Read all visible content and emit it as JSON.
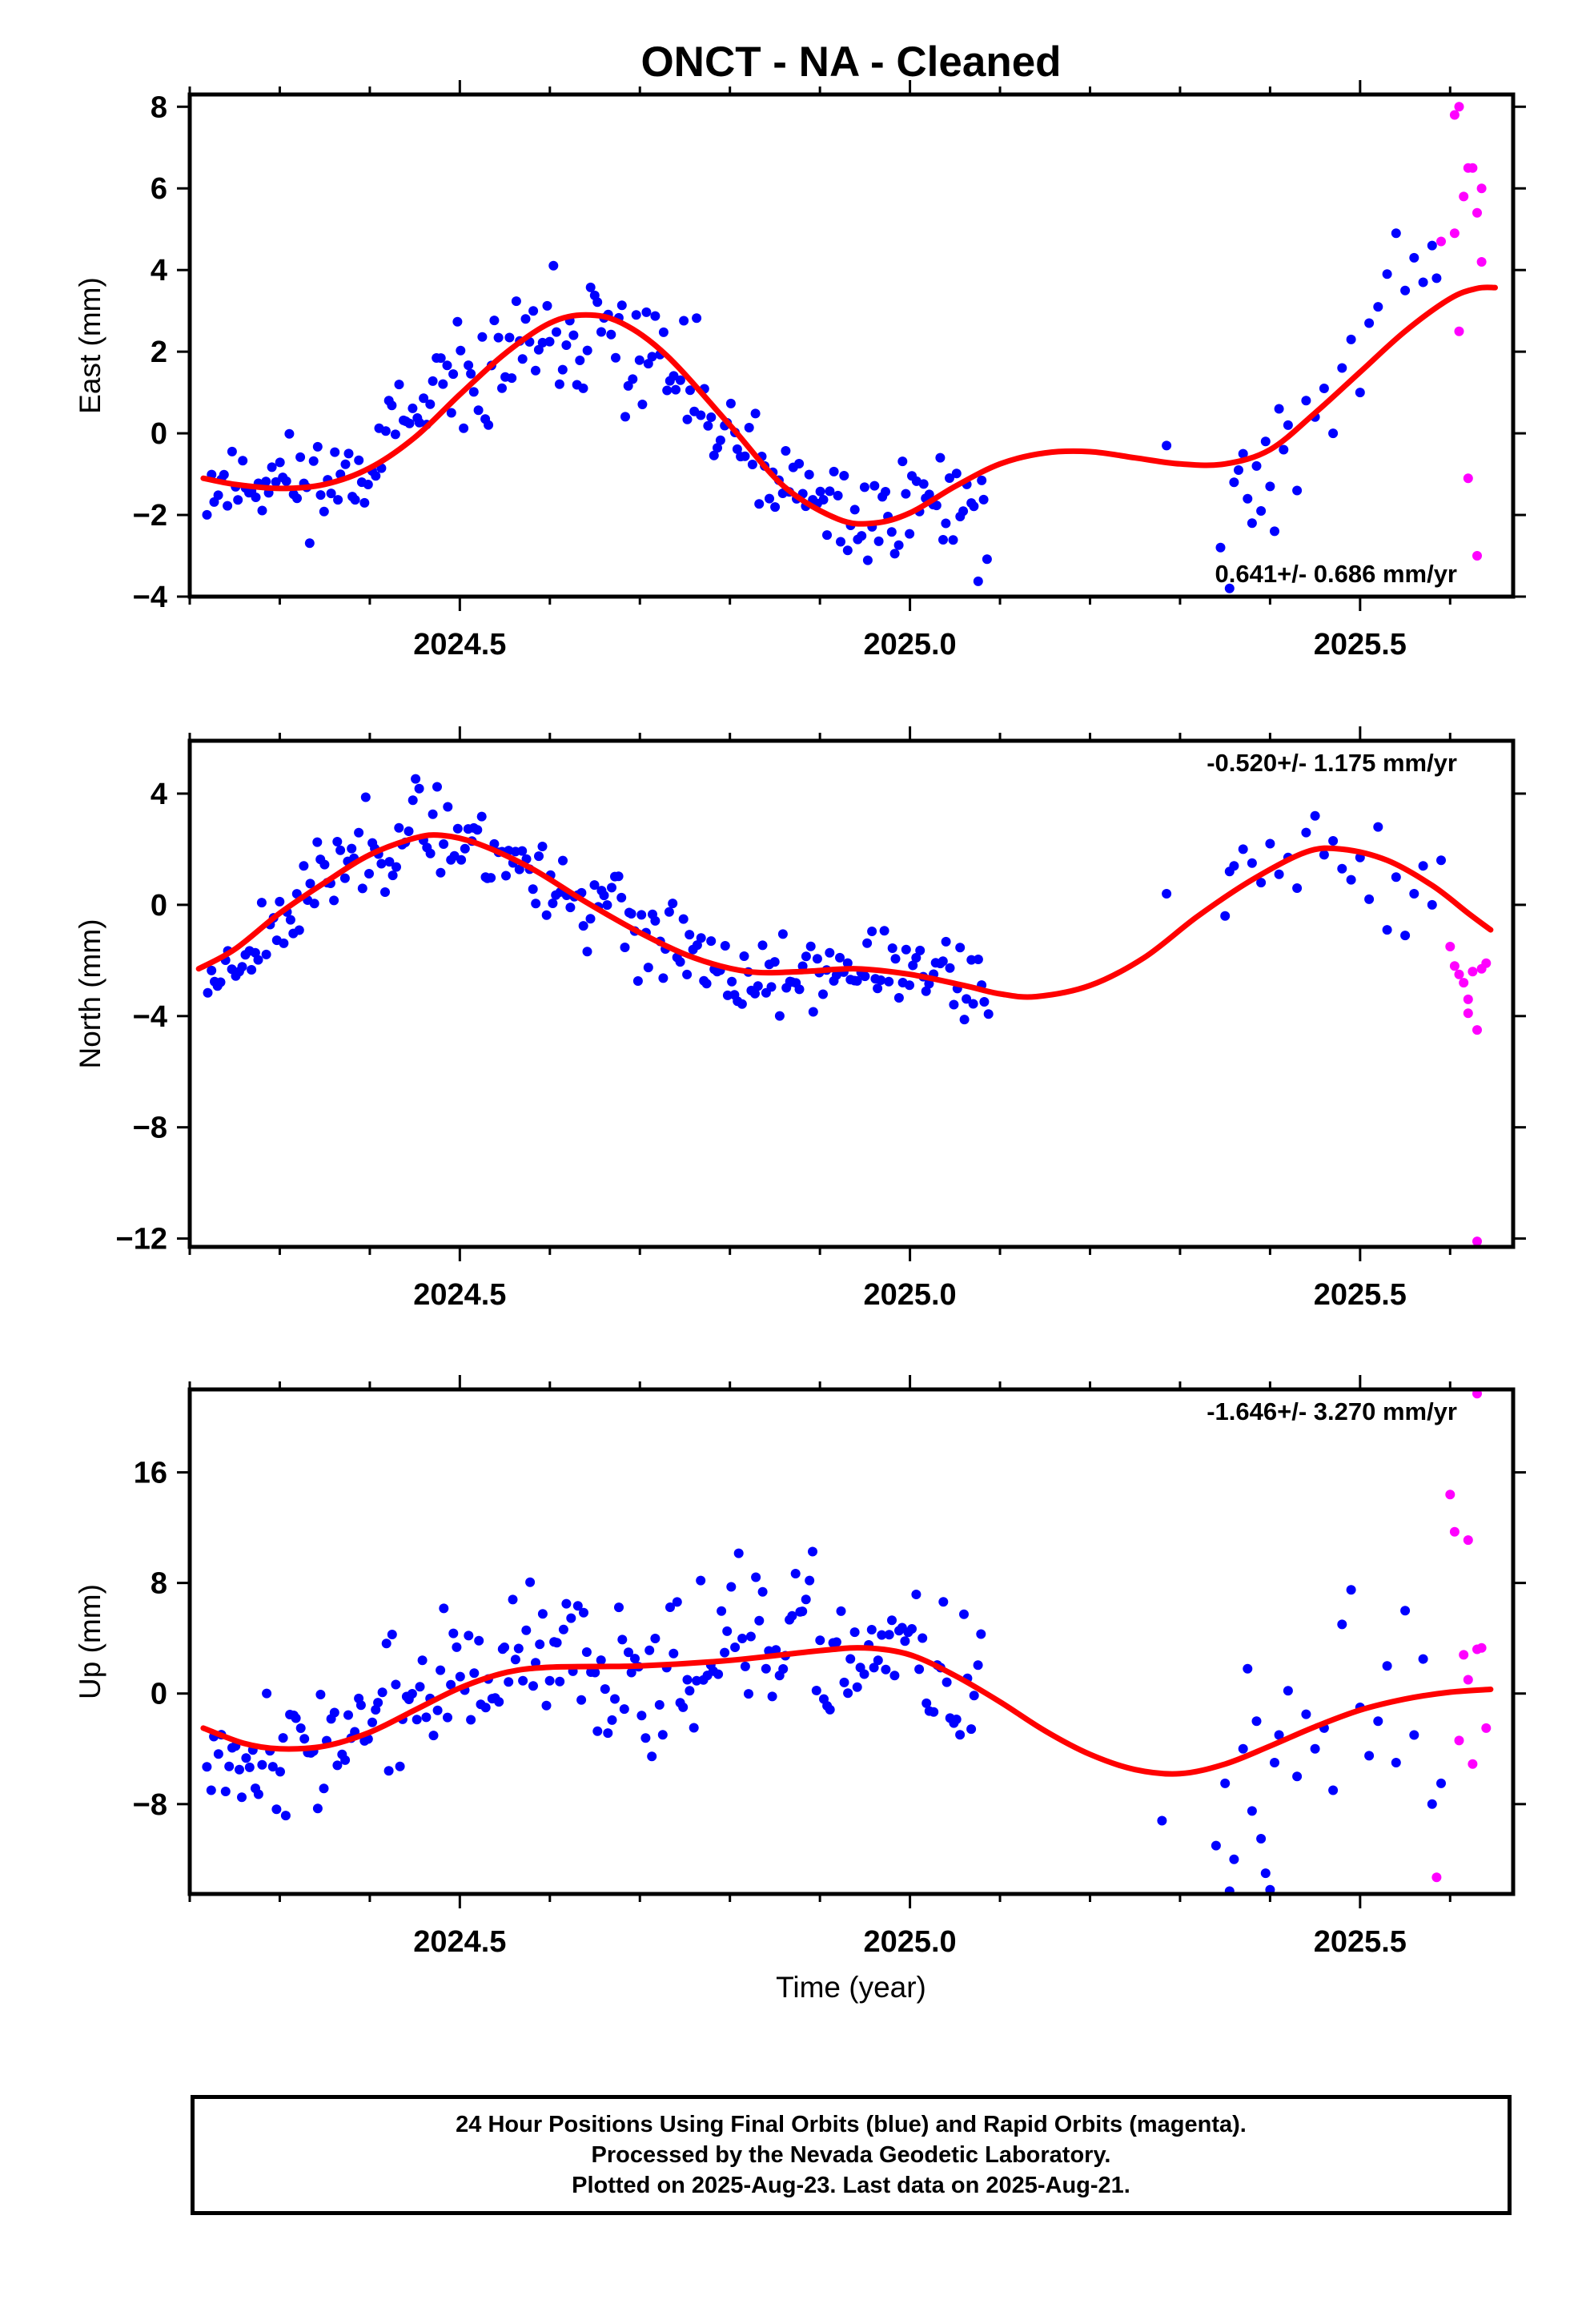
{
  "title": "ONCT  - NA - Cleaned",
  "xlabel": "Time (year)",
  "colors": {
    "final": "#0000ff",
    "rapid": "#ff00ff",
    "trend": "#ff0000",
    "frame": "#000000"
  },
  "footer": [
    "24 Hour Positions Using Final Orbits (blue) and Rapid Orbits (magenta).",
    "Processed by the Nevada Geodetic Laboratory.",
    "Plotted on 2025-Aug-23. Last data on 2025-Aug-21."
  ],
  "chart_data": [
    {
      "type": "scatter",
      "name": "east",
      "ylabel": "East (mm)",
      "rate": "0.641+/- 0.686 mm/yr",
      "rate_position": "bottom-right",
      "xlim": [
        2024.2,
        2025.67
      ],
      "ylim": [
        -4,
        8.3
      ],
      "yticks": [
        -4,
        -2,
        0,
        2,
        4,
        6,
        8
      ],
      "yticklabels": [
        "−4",
        "−2",
        "0",
        "2",
        "4",
        "6",
        "8"
      ],
      "xticks": [
        2024.5,
        2025.0,
        2025.5
      ],
      "xticklabels": [
        "2024.5",
        "2025.0",
        "2025.5"
      ],
      "trend": [
        [
          2024.215,
          -1.1
        ],
        [
          2024.25,
          -1.25
        ],
        [
          2024.3,
          -1.35
        ],
        [
          2024.35,
          -1.25
        ],
        [
          2024.4,
          -0.85
        ],
        [
          2024.45,
          -0.1
        ],
        [
          2024.5,
          0.95
        ],
        [
          2024.55,
          1.95
        ],
        [
          2024.6,
          2.7
        ],
        [
          2024.64,
          2.9
        ],
        [
          2024.68,
          2.7
        ],
        [
          2024.73,
          1.9
        ],
        [
          2024.8,
          0.2
        ],
        [
          2024.86,
          -1.3
        ],
        [
          2024.92,
          -2.1
        ],
        [
          2024.96,
          -2.2
        ],
        [
          2025.0,
          -1.95
        ],
        [
          2025.05,
          -1.3
        ],
        [
          2025.1,
          -0.75
        ],
        [
          2025.15,
          -0.48
        ],
        [
          2025.2,
          -0.45
        ],
        [
          2025.25,
          -0.6
        ],
        [
          2025.3,
          -0.75
        ],
        [
          2025.35,
          -0.75
        ],
        [
          2025.4,
          -0.4
        ],
        [
          2025.45,
          0.5
        ],
        [
          2025.5,
          1.5
        ],
        [
          2025.55,
          2.5
        ],
        [
          2025.6,
          3.3
        ],
        [
          2025.63,
          3.55
        ],
        [
          2025.65,
          3.57
        ]
      ],
      "rapid": [
        [
          2025.59,
          4.7
        ],
        [
          2025.605,
          7.8
        ],
        [
          2025.61,
          8.0
        ],
        [
          2025.605,
          4.9
        ],
        [
          2025.61,
          2.5
        ],
        [
          2025.615,
          5.8
        ],
        [
          2025.62,
          6.5
        ],
        [
          2025.625,
          6.5
        ],
        [
          2025.63,
          5.4
        ],
        [
          2025.62,
          -1.1
        ],
        [
          2025.635,
          6.0
        ],
        [
          2025.635,
          4.2
        ],
        [
          2025.63,
          -3.0
        ]
      ],
      "final_seed": 11,
      "final_anchors": [
        [
          2024.22,
          -1.2,
          0.9
        ],
        [
          2024.3,
          -1.1,
          0.8
        ],
        [
          2024.36,
          -1.2,
          0.8
        ],
        [
          2024.45,
          0.3,
          0.9
        ],
        [
          2024.55,
          1.8,
          1.0
        ],
        [
          2024.64,
          2.4,
          1.2
        ],
        [
          2024.72,
          1.8,
          1.2
        ],
        [
          2024.8,
          -0.3,
          1.1
        ],
        [
          2024.87,
          -1.6,
          1.0
        ],
        [
          2024.95,
          -2.1,
          0.9
        ],
        [
          2025.02,
          -1.5,
          0.8
        ],
        [
          2025.09,
          -2.0,
          1.0
        ]
      ],
      "final_extra": [
        [
          2025.285,
          -0.3
        ],
        [
          2025.345,
          -2.8
        ],
        [
          2025.355,
          -3.8
        ],
        [
          2025.36,
          -1.2
        ],
        [
          2025.365,
          -0.9
        ],
        [
          2025.37,
          -0.5
        ],
        [
          2025.375,
          -1.6
        ],
        [
          2025.38,
          -2.2
        ],
        [
          2025.385,
          -0.8
        ],
        [
          2025.39,
          -1.9
        ],
        [
          2025.395,
          -0.2
        ],
        [
          2025.4,
          -1.3
        ],
        [
          2025.405,
          -2.4
        ],
        [
          2025.41,
          0.6
        ],
        [
          2025.415,
          -0.4
        ],
        [
          2025.42,
          0.2
        ],
        [
          2025.43,
          -1.4
        ],
        [
          2025.44,
          0.8
        ],
        [
          2025.45,
          0.4
        ],
        [
          2025.46,
          1.1
        ],
        [
          2025.47,
          0.0
        ],
        [
          2025.48,
          1.6
        ],
        [
          2025.49,
          2.3
        ],
        [
          2025.5,
          1.0
        ],
        [
          2025.51,
          2.7
        ],
        [
          2025.52,
          3.1
        ],
        [
          2025.53,
          3.9
        ],
        [
          2025.54,
          4.9
        ],
        [
          2025.55,
          3.5
        ],
        [
          2025.56,
          4.3
        ],
        [
          2025.57,
          3.7
        ],
        [
          2025.58,
          4.6
        ],
        [
          2025.585,
          3.8
        ]
      ]
    },
    {
      "type": "scatter",
      "name": "north",
      "ylabel": "North (mm)",
      "rate": "-0.520+/- 1.175 mm/yr",
      "rate_position": "top-right",
      "xlim": [
        2024.2,
        2025.67
      ],
      "ylim": [
        -12.3,
        5.9
      ],
      "yticks": [
        -12,
        -8,
        -4,
        0,
        4
      ],
      "yticklabels": [
        "−12",
        "−8",
        "−4",
        "0",
        "4"
      ],
      "xticks": [
        2024.5,
        2025.0,
        2025.5
      ],
      "xticklabels": [
        "2024.5",
        "2025.0",
        "2025.5"
      ],
      "trend": [
        [
          2024.21,
          -2.3
        ],
        [
          2024.25,
          -1.6
        ],
        [
          2024.3,
          -0.3
        ],
        [
          2024.35,
          0.8
        ],
        [
          2024.4,
          1.8
        ],
        [
          2024.45,
          2.4
        ],
        [
          2024.48,
          2.5
        ],
        [
          2024.52,
          2.2
        ],
        [
          2024.58,
          1.3
        ],
        [
          2024.64,
          0.1
        ],
        [
          2024.7,
          -1.0
        ],
        [
          2024.76,
          -1.9
        ],
        [
          2024.82,
          -2.4
        ],
        [
          2024.88,
          -2.4
        ],
        [
          2024.94,
          -2.3
        ],
        [
          2025.0,
          -2.5
        ],
        [
          2025.06,
          -2.9
        ],
        [
          2025.1,
          -3.2
        ],
        [
          2025.14,
          -3.3
        ],
        [
          2025.2,
          -2.9
        ],
        [
          2025.26,
          -1.9
        ],
        [
          2025.32,
          -0.4
        ],
        [
          2025.38,
          0.9
        ],
        [
          2025.44,
          1.9
        ],
        [
          2025.48,
          2.0
        ],
        [
          2025.53,
          1.6
        ],
        [
          2025.58,
          0.7
        ],
        [
          2025.62,
          -0.3
        ],
        [
          2025.645,
          -0.9
        ]
      ],
      "rapid": [
        [
          2025.6,
          -1.5
        ],
        [
          2025.605,
          -2.2
        ],
        [
          2025.61,
          -2.5
        ],
        [
          2025.615,
          -2.8
        ],
        [
          2025.62,
          -3.4
        ],
        [
          2025.62,
          -3.9
        ],
        [
          2025.625,
          -2.4
        ],
        [
          2025.63,
          -4.5
        ],
        [
          2025.635,
          -2.3
        ],
        [
          2025.64,
          -2.1
        ],
        [
          2025.63,
          -12.1
        ]
      ],
      "final_seed": 23,
      "final_anchors": [
        [
          2024.22,
          -2.8,
          0.8
        ],
        [
          2024.3,
          -0.5,
          1.0
        ],
        [
          2024.38,
          1.8,
          1.1
        ],
        [
          2024.47,
          2.9,
          1.1
        ],
        [
          2024.55,
          1.8,
          1.3
        ],
        [
          2024.63,
          0.4,
          1.3
        ],
        [
          2024.72,
          -1.2,
          1.2
        ],
        [
          2024.8,
          -2.8,
          1.0
        ],
        [
          2024.88,
          -2.6,
          0.9
        ],
        [
          2024.97,
          -2.2,
          0.8
        ],
        [
          2025.04,
          -2.7,
          1.0
        ],
        [
          2025.09,
          -3.2,
          1.0
        ]
      ],
      "final_extra": [
        [
          2025.285,
          0.4
        ],
        [
          2025.35,
          -0.4
        ],
        [
          2025.355,
          1.2
        ],
        [
          2025.36,
          1.4
        ],
        [
          2025.37,
          2.0
        ],
        [
          2025.38,
          1.5
        ],
        [
          2025.39,
          0.8
        ],
        [
          2025.4,
          2.2
        ],
        [
          2025.41,
          1.1
        ],
        [
          2025.42,
          1.7
        ],
        [
          2025.43,
          0.6
        ],
        [
          2025.44,
          2.6
        ],
        [
          2025.45,
          3.2
        ],
        [
          2025.46,
          1.8
        ],
        [
          2025.47,
          2.3
        ],
        [
          2025.48,
          1.3
        ],
        [
          2025.49,
          0.9
        ],
        [
          2025.5,
          1.7
        ],
        [
          2025.51,
          0.2
        ],
        [
          2025.52,
          2.8
        ],
        [
          2025.53,
          -0.9
        ],
        [
          2025.54,
          1.0
        ],
        [
          2025.55,
          -1.1
        ],
        [
          2025.56,
          0.4
        ],
        [
          2025.57,
          1.4
        ],
        [
          2025.58,
          0.0
        ],
        [
          2025.59,
          1.6
        ]
      ]
    },
    {
      "type": "scatter",
      "name": "up",
      "ylabel": "Up (mm)",
      "rate": "-1.646+/- 3.270 mm/yr",
      "rate_position": "top-right",
      "xlim": [
        2024.2,
        2025.67
      ],
      "ylim": [
        -14.5,
        22
      ],
      "yticks": [
        -8,
        0,
        8,
        16
      ],
      "yticklabels": [
        "−8",
        "0",
        "8",
        "16"
      ],
      "xticks": [
        2024.5,
        2025.0,
        2025.5
      ],
      "xticklabels": [
        "2024.5",
        "2025.0",
        "2025.5"
      ],
      "trend": [
        [
          2024.215,
          -2.5
        ],
        [
          2024.26,
          -3.6
        ],
        [
          2024.3,
          -4.0
        ],
        [
          2024.35,
          -3.8
        ],
        [
          2024.4,
          -2.8
        ],
        [
          2024.45,
          -1.2
        ],
        [
          2024.5,
          0.4
        ],
        [
          2024.55,
          1.5
        ],
        [
          2024.6,
          1.9
        ],
        [
          2024.7,
          2.0
        ],
        [
          2024.8,
          2.4
        ],
        [
          2024.9,
          3.1
        ],
        [
          2024.95,
          3.3
        ],
        [
          2025.0,
          2.8
        ],
        [
          2025.05,
          1.3
        ],
        [
          2025.1,
          -0.6
        ],
        [
          2025.15,
          -2.7
        ],
        [
          2025.2,
          -4.4
        ],
        [
          2025.25,
          -5.5
        ],
        [
          2025.3,
          -5.8
        ],
        [
          2025.35,
          -5.1
        ],
        [
          2025.4,
          -3.8
        ],
        [
          2025.45,
          -2.4
        ],
        [
          2025.5,
          -1.2
        ],
        [
          2025.55,
          -0.4
        ],
        [
          2025.6,
          0.1
        ],
        [
          2025.645,
          0.3
        ]
      ],
      "rapid": [
        [
          2025.585,
          -13.3
        ],
        [
          2025.6,
          14.4
        ],
        [
          2025.605,
          11.7
        ],
        [
          2025.61,
          -3.4
        ],
        [
          2025.615,
          2.8
        ],
        [
          2025.62,
          1.0
        ],
        [
          2025.62,
          11.1
        ],
        [
          2025.625,
          -5.1
        ],
        [
          2025.63,
          3.2
        ],
        [
          2025.635,
          3.3
        ],
        [
          2025.64,
          -2.5
        ],
        [
          2025.63,
          21.7
        ]
      ],
      "final_seed": 37,
      "final_anchors": [
        [
          2024.22,
          -3.5,
          2.8
        ],
        [
          2024.3,
          -4.5,
          3.0
        ],
        [
          2024.4,
          -2.0,
          3.5
        ],
        [
          2024.5,
          1.0,
          4.0
        ],
        [
          2024.6,
          2.3,
          4.0
        ],
        [
          2024.7,
          1.8,
          3.8
        ],
        [
          2024.8,
          3.5,
          4.0
        ],
        [
          2024.9,
          3.0,
          4.0
        ],
        [
          2024.98,
          2.5,
          3.6
        ],
        [
          2025.08,
          1.0,
          3.6
        ]
      ],
      "final_extra": [
        [
          2025.28,
          -9.2
        ],
        [
          2025.34,
          -11.0
        ],
        [
          2025.35,
          -6.5
        ],
        [
          2025.355,
          -14.3
        ],
        [
          2025.36,
          -12.0
        ],
        [
          2025.37,
          -4.0
        ],
        [
          2025.375,
          1.8
        ],
        [
          2025.38,
          -8.5
        ],
        [
          2025.385,
          -2.0
        ],
        [
          2025.39,
          -10.5
        ],
        [
          2025.395,
          -13.0
        ],
        [
          2025.4,
          -14.2
        ],
        [
          2025.405,
          -5.0
        ],
        [
          2025.41,
          -3.0
        ],
        [
          2025.42,
          0.2
        ],
        [
          2025.43,
          -6.0
        ],
        [
          2025.44,
          -1.5
        ],
        [
          2025.45,
          -4.0
        ],
        [
          2025.46,
          -2.5
        ],
        [
          2025.47,
          -7.0
        ],
        [
          2025.48,
          5.0
        ],
        [
          2025.49,
          7.5
        ],
        [
          2025.5,
          -1.0
        ],
        [
          2025.51,
          -4.5
        ],
        [
          2025.52,
          -2.0
        ],
        [
          2025.53,
          2.0
        ],
        [
          2025.54,
          -5.0
        ],
        [
          2025.55,
          6.0
        ],
        [
          2025.56,
          -3.0
        ],
        [
          2025.57,
          2.5
        ],
        [
          2025.58,
          -8.0
        ],
        [
          2025.59,
          -6.5
        ]
      ]
    }
  ]
}
